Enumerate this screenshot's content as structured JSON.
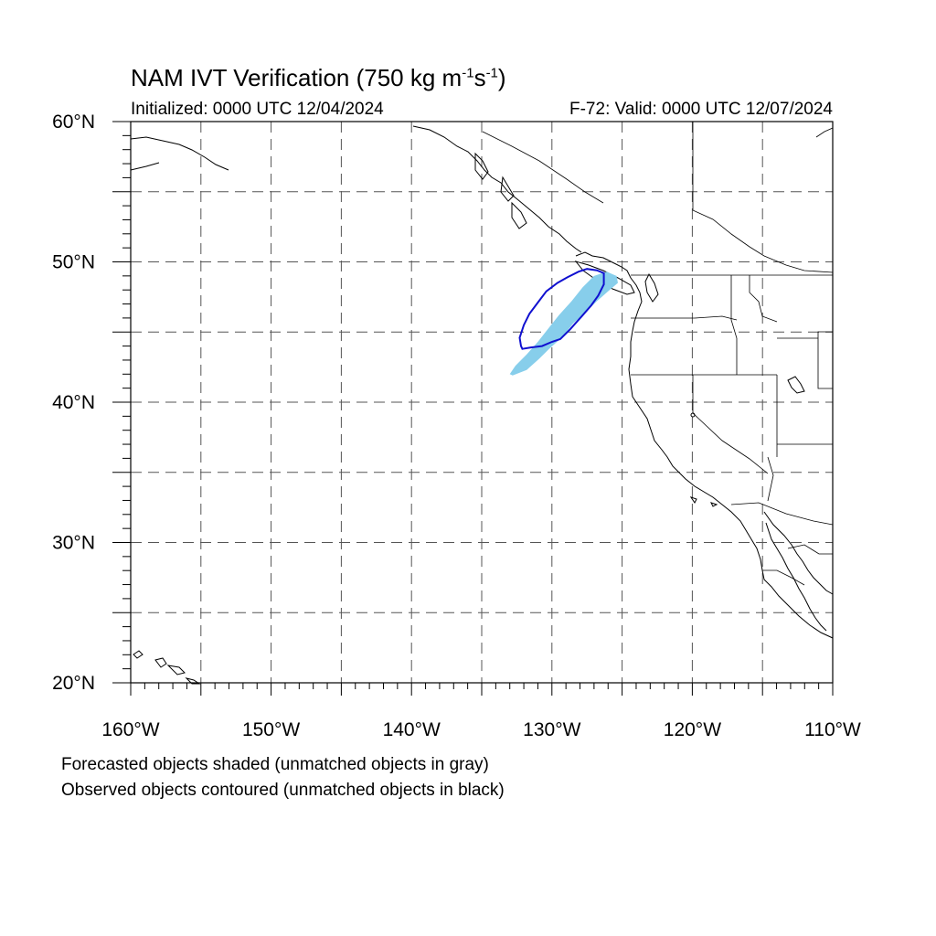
{
  "title": {
    "main": "NAM IVT Verification (750 kg m",
    "exp1": "-1",
    "mid": "s",
    "exp2": "-1",
    "end": ")"
  },
  "initialized": "Initialized: 0000 UTC 12/04/2024",
  "valid": "F-72: Valid: 0000 UTC 12/07/2024",
  "lat_labels": [
    "60°N",
    "50°N",
    "40°N",
    "30°N",
    "20°N"
  ],
  "lon_labels": [
    "160°W",
    "150°W",
    "140°W",
    "130°W",
    "120°W",
    "110°W"
  ],
  "notes": [
    "Forecasted objects shaded (unmatched objects in gray)",
    "Observed objects contoured (unmatched objects in black)"
  ],
  "colors": {
    "forecast_fill": "#87ceeb",
    "observed_contour": "#1010d0",
    "grid": "#555555",
    "coast": "#000000"
  },
  "chart_data": {
    "type": "map",
    "extent": {
      "lon": [
        -160,
        -110
      ],
      "lat": [
        20,
        60
      ]
    },
    "grid_lon": [
      -155,
      -150,
      -145,
      -140,
      -135,
      -130,
      -125,
      -120,
      -115
    ],
    "grid_lat": [
      25,
      30,
      35,
      40,
      45,
      50,
      55
    ],
    "forecast_object": [
      [
        -133.0,
        42.0
      ],
      [
        -132.8,
        41.9
      ],
      [
        -131.8,
        42.3
      ],
      [
        -130.9,
        43.1
      ],
      [
        -130.2,
        43.8
      ],
      [
        -129.2,
        44.7
      ],
      [
        -128.5,
        45.6
      ],
      [
        -127.6,
        46.4
      ],
      [
        -126.8,
        47.2
      ],
      [
        -126.0,
        47.9
      ],
      [
        -125.3,
        48.5
      ],
      [
        -125.4,
        49.0
      ],
      [
        -126.1,
        49.3
      ],
      [
        -127.0,
        49.0
      ],
      [
        -127.8,
        48.2
      ],
      [
        -128.6,
        47.2
      ],
      [
        -129.5,
        46.2
      ],
      [
        -130.3,
        45.2
      ],
      [
        -131.0,
        44.3
      ],
      [
        -131.8,
        43.4
      ],
      [
        -132.6,
        42.6
      ]
    ],
    "observed_object": [
      [
        -132.1,
        43.8
      ],
      [
        -131.5,
        43.9
      ],
      [
        -130.7,
        44.0
      ],
      [
        -130.0,
        44.3
      ],
      [
        -129.4,
        44.5
      ],
      [
        -128.7,
        45.2
      ],
      [
        -127.9,
        46.1
      ],
      [
        -127.2,
        46.9
      ],
      [
        -126.7,
        47.6
      ],
      [
        -126.3,
        48.4
      ],
      [
        -126.3,
        49.2
      ],
      [
        -126.8,
        49.4
      ],
      [
        -127.5,
        49.5
      ],
      [
        -128.1,
        49.3
      ],
      [
        -128.9,
        48.9
      ],
      [
        -129.6,
        48.5
      ],
      [
        -130.4,
        47.9
      ],
      [
        -131.0,
        47.1
      ],
      [
        -131.6,
        46.3
      ],
      [
        -132.0,
        45.5
      ],
      [
        -132.3,
        44.6
      ],
      [
        -132.2,
        44.0
      ]
    ]
  }
}
